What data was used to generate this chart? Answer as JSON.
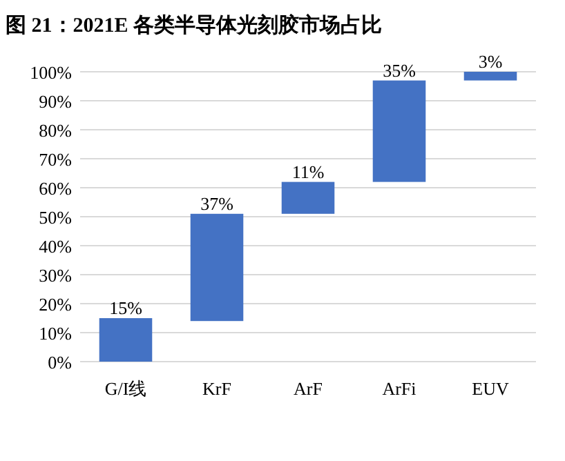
{
  "chart_data": {
    "type": "bar",
    "title": "图 21：2021E 各类半导体光刻胶市场占比",
    "categories": [
      "G/I线",
      "KrF",
      "ArF",
      "ArFi",
      "EUV"
    ],
    "values": [
      15,
      37,
      11,
      35,
      3
    ],
    "base": [
      0,
      14,
      51,
      62,
      97
    ],
    "value_labels": [
      "15%",
      "37%",
      "11%",
      "35%",
      "3%"
    ],
    "color": "#4472c4",
    "ylim": [
      0,
      100
    ],
    "yticks": [
      {
        "value": 0,
        "label": "0%"
      },
      {
        "value": 10,
        "label": "10%"
      },
      {
        "value": 20,
        "label": "20%"
      },
      {
        "value": 30,
        "label": "30%"
      },
      {
        "value": 40,
        "label": "40%"
      },
      {
        "value": 50,
        "label": "50%"
      },
      {
        "value": 60,
        "label": "60%"
      },
      {
        "value": 70,
        "label": "70%"
      },
      {
        "value": 80,
        "label": "80%"
      },
      {
        "value": 90,
        "label": "90%"
      },
      {
        "value": 100,
        "label": "100%"
      }
    ],
    "grid": "y"
  }
}
